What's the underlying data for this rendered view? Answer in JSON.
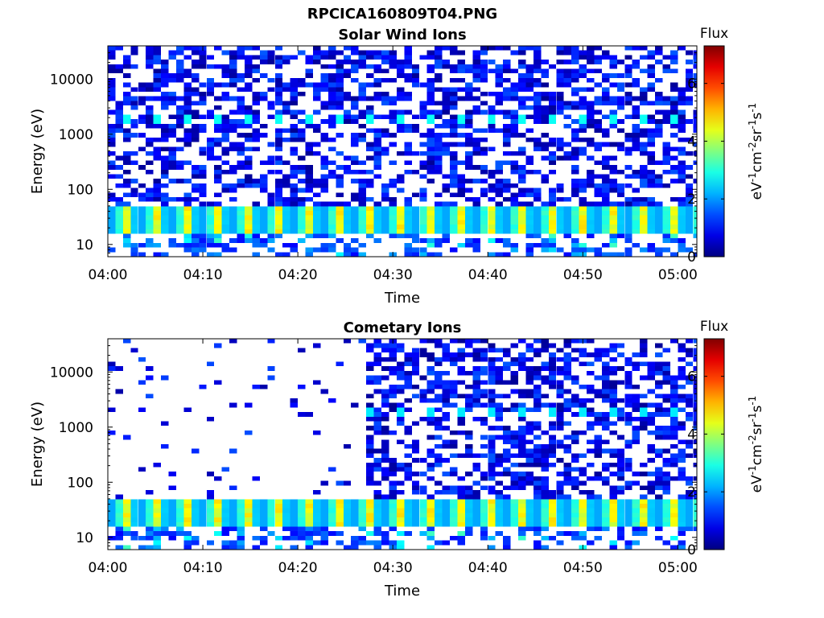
{
  "figure_title": "RPCICA160809T04.PNG",
  "chart_data": [
    {
      "type": "heatmap",
      "title": "Solar Wind Ions",
      "xlabel": "Time",
      "ylabel": "Energy (eV)",
      "x_ticks": [
        "04:00",
        "04:10",
        "04:20",
        "04:30",
        "04:40",
        "04:50",
        "05:00"
      ],
      "x_range": [
        "04:00",
        "05:02"
      ],
      "y_scale": "log",
      "y_ticks": [
        10,
        100,
        1000,
        10000
      ],
      "y_range": [
        6,
        40000
      ],
      "colorbar": {
        "title": "Flux",
        "label": "eV-1cm-2sr-1s-1",
        "range": [
          0,
          7.3
        ],
        "ticks": [
          0,
          2,
          4,
          6
        ],
        "colormap": "jet"
      },
      "features": {
        "band_energy_range_eV": [
          15,
          45
        ],
        "band_peak_flux": 5.0,
        "peak_period_min": 3.2,
        "background_flux_range": [
          0.2,
          1.6
        ],
        "high_energy_stripes_flux": 2.8
      }
    },
    {
      "type": "heatmap",
      "title": "Cometary Ions",
      "xlabel": "Time",
      "ylabel": "Energy (eV)",
      "x_ticks": [
        "04:00",
        "04:10",
        "04:20",
        "04:30",
        "04:40",
        "04:50",
        "05:00"
      ],
      "x_range": [
        "04:00",
        "05:02"
      ],
      "y_scale": "log",
      "y_ticks": [
        10,
        100,
        1000,
        10000
      ],
      "y_range": [
        6,
        40000
      ],
      "colorbar": {
        "title": "Flux",
        "label": "eV-1cm-2sr-1s-1",
        "range": [
          0,
          7.3
        ],
        "ticks": [
          0,
          2,
          4,
          6
        ],
        "colormap": "jet"
      },
      "features": {
        "band_energy_range_eV": [
          15,
          45
        ],
        "band_peak_flux": 5.0,
        "peak_period_min": 3.2,
        "sparse_until": "04:27",
        "dense_after": "04:27"
      }
    }
  ]
}
